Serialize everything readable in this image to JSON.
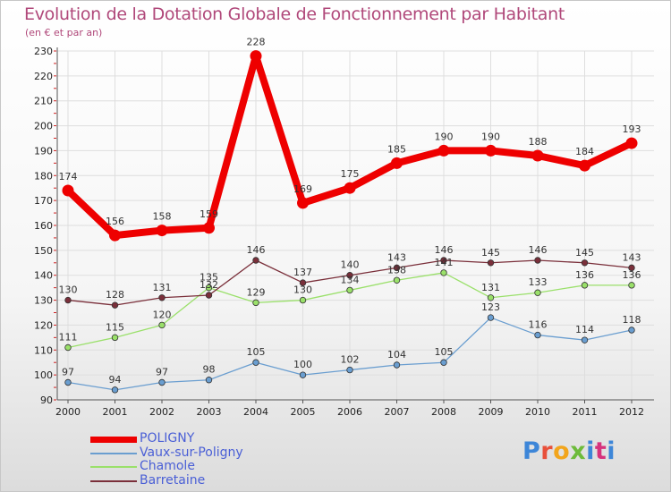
{
  "header": {
    "title": "Evolution de la Dotation Globale de Fonctionnement par Habitant",
    "subtitle": "(en € et par an)"
  },
  "logo": {
    "text": "Proxiti",
    "letter_colors": [
      "#3d86d8",
      "#e8503a",
      "#f2a51c",
      "#6dbb3a",
      "#3d86d8",
      "#d6337d",
      "#3d86d8"
    ]
  },
  "chart_data": {
    "type": "line",
    "title": "Evolution de la Dotation Globale de Fonctionnement par Habitant",
    "subtitle": "(en € et par an)",
    "xlabel": "",
    "ylabel": "",
    "categories": [
      "2000",
      "2001",
      "2002",
      "2003",
      "2004",
      "2005",
      "2006",
      "2007",
      "2008",
      "2009",
      "2010",
      "2011",
      "2012"
    ],
    "ylim": [
      90,
      230
    ],
    "yticks": [
      "90",
      "100",
      "110",
      "120",
      "130",
      "140",
      "150",
      "160",
      "170",
      "180",
      "190",
      "200",
      "210",
      "220",
      "230"
    ],
    "grid": true,
    "legend_position": "bottom-left",
    "series": [
      {
        "name": "POLIGNY",
        "color": "#ee0000",
        "values": [
          174,
          156,
          158,
          159,
          228,
          169,
          175,
          185,
          190,
          190,
          188,
          184,
          193
        ],
        "labels": [
          "174",
          "156",
          "158",
          "159",
          "228",
          "169",
          "175",
          "185",
          "190",
          "190",
          "188",
          "184",
          "193"
        ]
      },
      {
        "name": "Vaux-sur-Poligny",
        "color": "#6a9ed0",
        "values": [
          97,
          94,
          97,
          98,
          105,
          100,
          102,
          104,
          105,
          123,
          116,
          114,
          118
        ],
        "labels": [
          "97",
          "94",
          "97",
          "98",
          "105",
          "100",
          "102",
          "104",
          "105",
          "123",
          "116",
          "114",
          "118"
        ]
      },
      {
        "name": "Chamole",
        "color": "#9ae06a",
        "values": [
          111,
          115,
          120,
          135,
          129,
          130,
          134,
          138,
          141,
          131,
          133,
          136,
          136
        ],
        "labels": [
          "111",
          "115",
          "120",
          "135",
          "129",
          "130",
          "134",
          "138",
          "141",
          "131",
          "133",
          "136",
          "136"
        ]
      },
      {
        "name": "Barretaine",
        "color": "#7a2f3a",
        "values": [
          130,
          128,
          131,
          132,
          146,
          137,
          140,
          143,
          146,
          145,
          146,
          145,
          143
        ],
        "labels": [
          "130",
          "128",
          "131",
          "132",
          "146",
          "137",
          "140",
          "143",
          "146",
          "145",
          "146",
          "145",
          "143"
        ]
      }
    ]
  }
}
